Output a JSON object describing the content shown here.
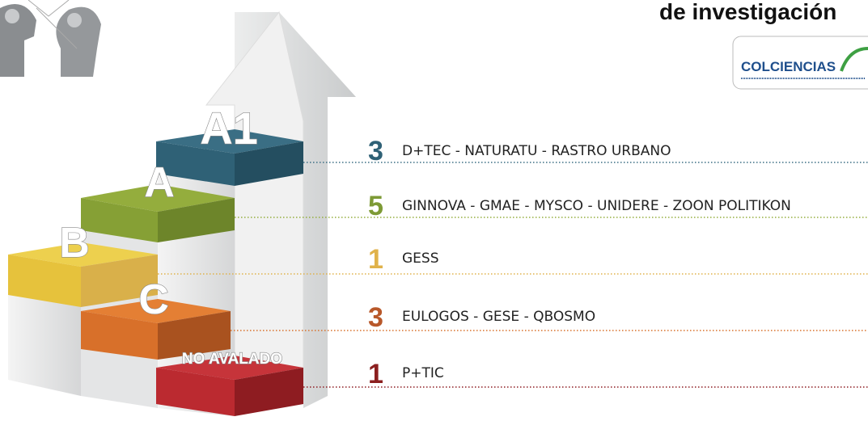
{
  "header": {
    "title": "de investigación",
    "logo": "COLCIENCIAS"
  },
  "steps": [
    "A1",
    "A",
    "B",
    "C",
    "NO AVALADO"
  ],
  "rows": [
    {
      "count": 3,
      "groups": "D+TEC - NATURATU - RASTRO URBANO"
    },
    {
      "count": 5,
      "groups": "GINNOVA - GMAE - MYSCO - UNIDERE - ZOON POLITIKON"
    },
    {
      "count": 1,
      "groups": "GESS"
    },
    {
      "count": 3,
      "groups": "EULOGOS - GESE - QBOSMO"
    },
    {
      "count": 1,
      "groups": "P+TIC"
    }
  ]
}
